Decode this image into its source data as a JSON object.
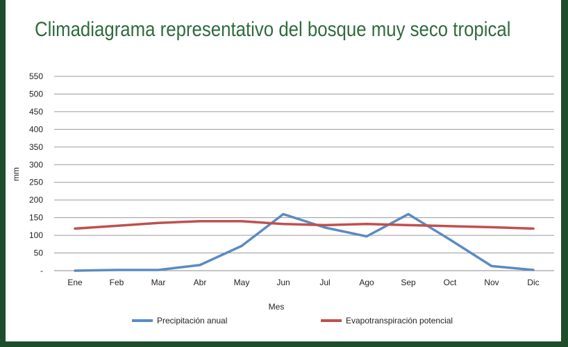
{
  "chart_data": {
    "type": "line",
    "title": "Climadiagrama representativo del bosque muy seco tropical",
    "xlabel": "Mes",
    "ylabel": "mm",
    "categories": [
      "Ene",
      "Feb",
      "Mar",
      "Abr",
      "May",
      "Jun",
      "Jul",
      "Ago",
      "Sep",
      "Oct",
      "Nov",
      "Dic"
    ],
    "yticks": [
      "-",
      "50",
      "100",
      "150",
      "200",
      "250",
      "300",
      "350",
      "400",
      "450",
      "500",
      "550"
    ],
    "ylim": [
      0,
      550
    ],
    "grid": true,
    "legend_position": "bottom",
    "series": [
      {
        "name": "Precipitación anual",
        "color": "#5a8bc3",
        "values": [
          0,
          2,
          2,
          16,
          70,
          160,
          122,
          97,
          160,
          88,
          13,
          2
        ]
      },
      {
        "name": "Evapotranspiración potencial",
        "color": "#c0504d",
        "values": [
          119,
          127,
          135,
          140,
          140,
          132,
          129,
          132,
          129,
          126,
          123,
          119
        ]
      }
    ]
  }
}
